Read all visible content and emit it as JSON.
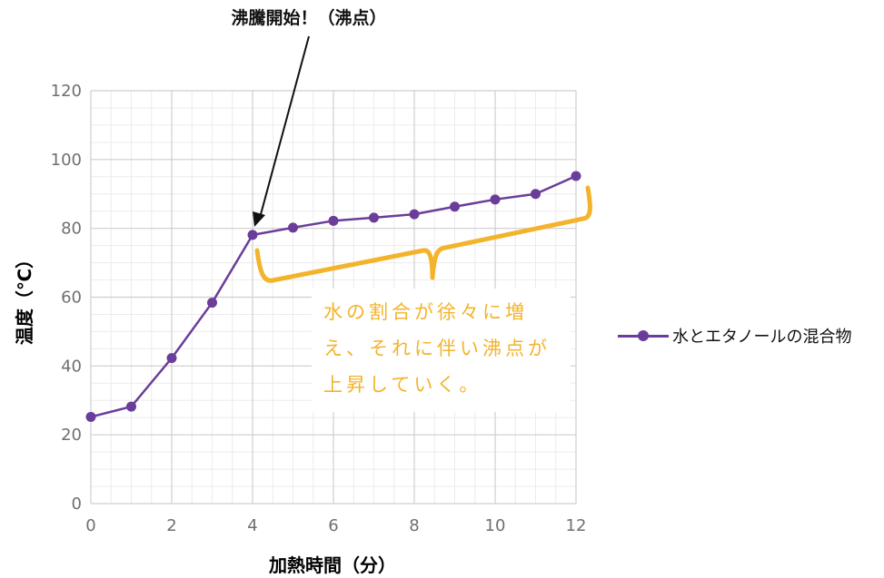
{
  "chart_data": {
    "type": "line",
    "xlabel": "加熱時間（分）",
    "ylabel": "温度（℃）",
    "xlim": [
      0,
      12
    ],
    "ylim": [
      0,
      120
    ],
    "x_ticks": [
      "0",
      "2",
      "4",
      "6",
      "8",
      "10",
      "12"
    ],
    "y_ticks": [
      "0",
      "20",
      "40",
      "60",
      "80",
      "100",
      "120"
    ],
    "grid": true,
    "legend_position": "right",
    "series": [
      {
        "name": "水とエタノールの混合物",
        "color": "#6a3d9a",
        "x": [
          0,
          1,
          2,
          3,
          4,
          5,
          6,
          7,
          8,
          9,
          10,
          11,
          12
        ],
        "y": [
          25.2,
          28.2,
          42.3,
          58.4,
          78.1,
          80.2,
          82.2,
          83.1,
          84.1,
          86.3,
          88.4,
          90,
          95.2
        ]
      }
    ],
    "annotations": {
      "boiling": "沸騰開始！（沸点）",
      "note_lines": [
        "水の割合が徐々に増",
        "え、それに伴い沸点が",
        "上昇していく。"
      ]
    },
    "bracket_color": "#f3b32b"
  }
}
